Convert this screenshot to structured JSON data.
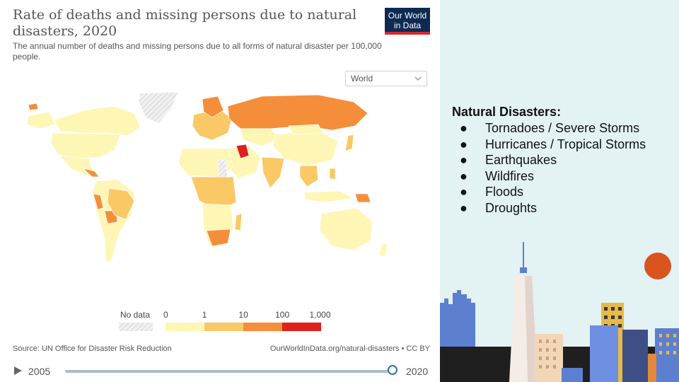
{
  "chart": {
    "title": "Rate of deaths and missing persons due to natural disasters, 2020",
    "subtitle": "The annual number of deaths and missing persons due to all forms of natural disaster per 100,000 people.",
    "logo": {
      "line1": "Our World",
      "line2": "in Data"
    },
    "region_selector": "World",
    "source": "Source: UN Office for Disaster Risk Reduction",
    "attribution": "OurWorldInData.org/natural-disasters • CC BY",
    "timeline": {
      "start": "2005",
      "end": "2020"
    }
  },
  "chart_data": {
    "type": "choropleth map",
    "title": "Rate of deaths and missing persons due to natural disasters, 2020",
    "legend": {
      "no_data_label": "No data",
      "thresholds": [
        "0",
        "1",
        "10",
        "100",
        "1,000"
      ],
      "colors": [
        "#fef6b5",
        "#fbc866",
        "#f58e3a",
        "#e0201b"
      ],
      "no_data_color": "#e6e6e6"
    }
  },
  "slide": {
    "heading": "Natural Disasters:",
    "bullet": "●",
    "items": [
      "Tornadoes / Severe Storms",
      "Hurricanes / Tropical Storms",
      "Earthquakes",
      "Wildfires",
      "Floods",
      "Droughts"
    ]
  },
  "colors": {
    "panel_bg": "#e3f2f3",
    "sun": "#d9541e",
    "accent_blue": "#5d7fd0"
  }
}
